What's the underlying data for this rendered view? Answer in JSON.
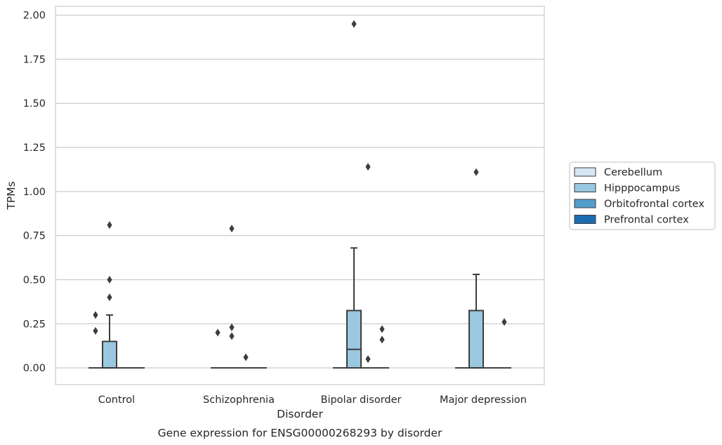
{
  "chart_data": {
    "type": "box",
    "title": "",
    "caption": "Gene expression for ENSG00000268293 by disorder",
    "xlabel": "Disorder",
    "ylabel": "TPMs",
    "ylim": [
      -0.095,
      2.05
    ],
    "yticks": [
      "0.00",
      "0.25",
      "0.50",
      "0.75",
      "1.00",
      "1.25",
      "1.50",
      "1.75",
      "2.00"
    ],
    "ytick_values": [
      0,
      0.25,
      0.5,
      0.75,
      1.0,
      1.25,
      1.5,
      1.75,
      2.0
    ],
    "grid": "horizontal",
    "legend_position": "right",
    "categories": [
      "Control",
      "Schizophrenia",
      "Bipolar disorder",
      "Major depression"
    ],
    "series": [
      {
        "name": "Cerebellum",
        "color": "#d6e6f4",
        "boxes": [
          {
            "category": "Control",
            "q1": 0,
            "median": 0,
            "q3": 0,
            "whisker_low": 0,
            "whisker_high": 0,
            "outliers": [
              0.21,
              0.3
            ]
          },
          {
            "category": "Schizophrenia",
            "q1": 0,
            "median": 0,
            "q3": 0,
            "whisker_low": 0,
            "whisker_high": 0,
            "outliers": [
              0.2
            ]
          },
          {
            "category": "Bipolar disorder",
            "q1": 0,
            "median": 0,
            "q3": 0,
            "whisker_low": 0,
            "whisker_high": 0,
            "outliers": []
          },
          {
            "category": "Major depression",
            "q1": 0,
            "median": 0,
            "q3": 0,
            "whisker_low": 0,
            "whisker_high": 0,
            "outliers": []
          }
        ]
      },
      {
        "name": "Hipppocampus",
        "color": "#9ac8e0",
        "boxes": [
          {
            "category": "Control",
            "q1": 0,
            "median": 0,
            "q3": 0.15,
            "whisker_low": 0,
            "whisker_high": 0.3,
            "outliers": [
              0.4,
              0.5,
              0.81
            ]
          },
          {
            "category": "Schizophrenia",
            "q1": 0,
            "median": 0,
            "q3": 0,
            "whisker_low": 0,
            "whisker_high": 0,
            "outliers": [
              0.18,
              0.23,
              0.79
            ]
          },
          {
            "category": "Bipolar disorder",
            "q1": 0,
            "median": 0.105,
            "q3": 0.325,
            "whisker_low": 0,
            "whisker_high": 0.68,
            "outliers": [
              1.95
            ]
          },
          {
            "category": "Major depression",
            "q1": 0,
            "median": 0,
            "q3": 0.325,
            "whisker_low": 0,
            "whisker_high": 0.53,
            "outliers": [
              1.11
            ]
          }
        ]
      },
      {
        "name": "Orbitofrontal cortex",
        "color": "#529dcc",
        "boxes": [
          {
            "category": "Control",
            "q1": 0,
            "median": 0,
            "q3": 0,
            "whisker_low": 0,
            "whisker_high": 0,
            "outliers": []
          },
          {
            "category": "Schizophrenia",
            "q1": 0,
            "median": 0,
            "q3": 0,
            "whisker_low": 0,
            "whisker_high": 0,
            "outliers": [
              0.06
            ]
          },
          {
            "category": "Bipolar disorder",
            "q1": 0,
            "median": 0,
            "q3": 0,
            "whisker_low": 0,
            "whisker_high": 0,
            "outliers": [
              0.05,
              1.14
            ]
          },
          {
            "category": "Major depression",
            "q1": 0,
            "median": 0,
            "q3": 0,
            "whisker_low": 0,
            "whisker_high": 0,
            "outliers": []
          }
        ]
      },
      {
        "name": "Prefrontal cortex",
        "color": "#1c6cb1",
        "boxes": [
          {
            "category": "Control",
            "q1": 0,
            "median": 0,
            "q3": 0,
            "whisker_low": 0,
            "whisker_high": 0,
            "outliers": []
          },
          {
            "category": "Schizophrenia",
            "q1": 0,
            "median": 0,
            "q3": 0,
            "whisker_low": 0,
            "whisker_high": 0,
            "outliers": []
          },
          {
            "category": "Bipolar disorder",
            "q1": 0,
            "median": 0,
            "q3": 0,
            "whisker_low": 0,
            "whisker_high": 0,
            "outliers": [
              0.16,
              0.22
            ]
          },
          {
            "category": "Major depression",
            "q1": 0,
            "median": 0,
            "q3": 0,
            "whisker_low": 0,
            "whisker_high": 0,
            "outliers": [
              0.26
            ]
          }
        ]
      }
    ]
  }
}
